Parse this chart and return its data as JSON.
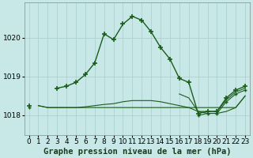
{
  "bg_color": "#c8e8e8",
  "grid_color": "#aacccc",
  "line_color": "#1a5c1a",
  "xlabel": "Graphe pression niveau de la mer (hPa)",
  "xlabel_fontsize": 7.5,
  "tick_fontsize": 6.5,
  "ylabel_ticks": [
    1018,
    1019,
    1020
  ],
  "xlim": [
    -0.5,
    23.5
  ],
  "ylim": [
    1017.5,
    1020.9
  ],
  "hours": [
    0,
    1,
    2,
    3,
    4,
    5,
    6,
    7,
    8,
    9,
    10,
    11,
    12,
    13,
    14,
    15,
    16,
    17,
    18,
    19,
    20,
    21,
    22,
    23
  ],
  "main_line": [
    1018.25,
    null,
    null,
    1018.7,
    1018.75,
    1018.85,
    1019.05,
    1019.35,
    1020.1,
    1019.95,
    1020.35,
    1020.55,
    1020.45,
    1020.15,
    1019.75,
    1019.45,
    1018.95,
    1018.85,
    1018.05,
    1018.1,
    1018.1,
    1018.45,
    1018.65,
    1018.75
  ],
  "line2": [
    null,
    1018.25,
    1018.2,
    1018.2,
    1018.2,
    1018.2,
    1018.2,
    1018.2,
    1018.2,
    1018.2,
    1018.2,
    1018.2,
    1018.2,
    1018.2,
    1018.2,
    1018.2,
    1018.2,
    1018.2,
    1018.2,
    1018.2,
    1018.2,
    1018.2,
    1018.2,
    1018.5
  ],
  "line3": [
    null,
    1018.25,
    1018.2,
    1018.2,
    1018.2,
    1018.2,
    1018.22,
    1018.25,
    1018.28,
    1018.3,
    1018.35,
    1018.38,
    1018.38,
    1018.38,
    1018.35,
    1018.3,
    1018.25,
    1018.2,
    1018.1,
    1018.05,
    1018.05,
    1018.1,
    1018.2,
    1018.5
  ],
  "line4": [
    1018.2,
    null,
    null,
    null,
    null,
    null,
    null,
    null,
    null,
    null,
    null,
    null,
    null,
    null,
    null,
    null,
    null,
    null,
    1018.0,
    1018.05,
    1018.05,
    1018.35,
    1018.55,
    1018.65
  ],
  "line5": [
    null,
    null,
    null,
    null,
    null,
    null,
    null,
    null,
    null,
    null,
    null,
    null,
    null,
    null,
    null,
    null,
    1018.55,
    1018.45,
    1018.1,
    1018.1,
    1018.1,
    1018.4,
    1018.6,
    1018.7
  ]
}
